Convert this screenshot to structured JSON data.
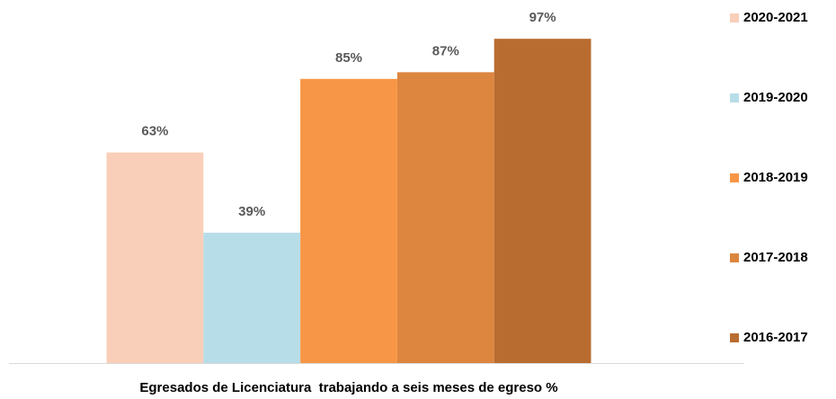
{
  "chart_data": {
    "type": "bar",
    "categories": [
      "Egresados de Licenciatura  trabajando a seis meses de egreso %"
    ],
    "series": [
      {
        "name": "2020-2021",
        "color": "#f9cfb9",
        "values": [
          63
        ],
        "value_labels": [
          "63%"
        ]
      },
      {
        "name": "2019-2020",
        "color": "#b7dde8",
        "values": [
          39
        ],
        "value_labels": [
          "39%"
        ]
      },
      {
        "name": "2018-2019",
        "color": "#f79646",
        "values": [
          85
        ],
        "value_labels": [
          "85%"
        ]
      },
      {
        "name": "2017-2018",
        "color": "#dc8640",
        "values": [
          87
        ],
        "value_labels": [
          "87%"
        ]
      },
      {
        "name": "2016-2017",
        "color": "#b96c30",
        "values": [
          97
        ],
        "value_labels": [
          "97%"
        ]
      }
    ],
    "ylim": [
      0,
      100
    ],
    "legend": "right"
  }
}
